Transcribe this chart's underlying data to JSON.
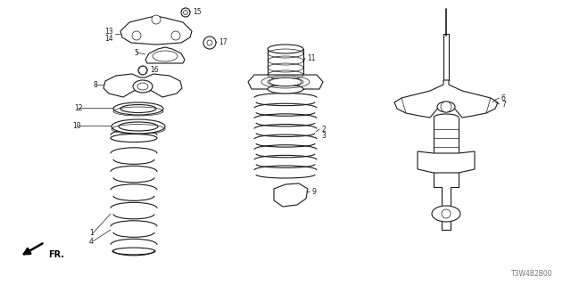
{
  "part_number": "T3W4B2B00",
  "bg_color": "#ffffff",
  "lc": "#1a1a1a",
  "lw": 0.8,
  "lw_thin": 0.5,
  "fs": 5.5
}
